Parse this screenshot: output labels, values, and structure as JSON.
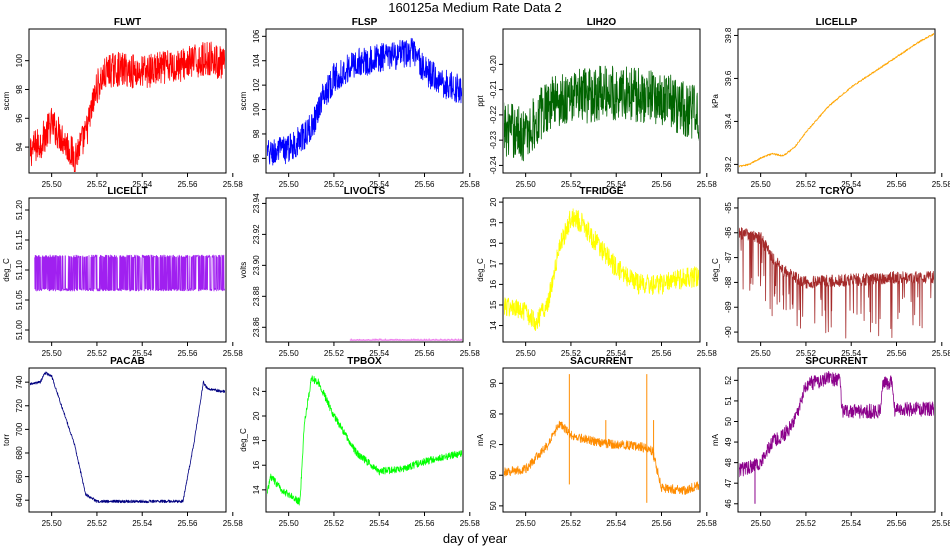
{
  "figure": {
    "title": "160125a   Medium Rate Data 2",
    "xlabel": "day of year"
  },
  "chart_data": [
    {
      "type": "line",
      "title": "FLWT",
      "ylabel": "sccm",
      "color": "#ff0000",
      "xlim": [
        25.49,
        25.577
      ],
      "ylim": [
        92.2,
        102.2
      ],
      "yticks": [
        94,
        96,
        98,
        100
      ],
      "xticks": [
        25.5,
        25.52,
        25.54,
        25.56,
        25.58
      ],
      "profile": [
        [
          25.49,
          93.7
        ],
        [
          25.495,
          94.3
        ],
        [
          25.5,
          95.6
        ],
        [
          25.505,
          94.6
        ],
        [
          25.51,
          93.3
        ],
        [
          25.515,
          94.8
        ],
        [
          25.52,
          98.2
        ],
        [
          25.525,
          99.3
        ],
        [
          25.53,
          99.4
        ],
        [
          25.54,
          99.2
        ],
        [
          25.55,
          99.5
        ],
        [
          25.56,
          99.8
        ],
        [
          25.57,
          100.2
        ],
        [
          25.577,
          99.6
        ]
      ],
      "noise": 1.2,
      "noise_style": "symmetric"
    },
    {
      "type": "line",
      "title": "FLSP",
      "ylabel": "sccm",
      "color": "#0000ff",
      "xlim": [
        25.49,
        25.577
      ],
      "ylim": [
        94.8,
        106.6
      ],
      "yticks": [
        96,
        98,
        100,
        102,
        104,
        106
      ],
      "xticks": [
        25.5,
        25.52,
        25.54,
        25.56,
        25.58
      ],
      "profile": [
        [
          25.49,
          96.3
        ],
        [
          25.5,
          96.8
        ],
        [
          25.505,
          97.5
        ],
        [
          25.51,
          98.5
        ],
        [
          25.515,
          101.0
        ],
        [
          25.52,
          102.6
        ],
        [
          25.53,
          103.8
        ],
        [
          25.54,
          104.2
        ],
        [
          25.55,
          104.5
        ],
        [
          25.555,
          104.7
        ],
        [
          25.56,
          103.2
        ],
        [
          25.57,
          102.0
        ],
        [
          25.577,
          101.6
        ]
      ],
      "noise": 1.2,
      "noise_style": "symmetric"
    },
    {
      "type": "line",
      "title": "LIH2O",
      "ylabel": "ppt",
      "color": "#006400",
      "xlim": [
        25.49,
        25.577
      ],
      "ylim": [
        -0.243,
        -0.186
      ],
      "yticks": [
        -0.24,
        -0.23,
        -0.22,
        -0.21,
        -0.2
      ],
      "xticks": [
        25.5,
        25.52,
        25.54,
        25.56,
        25.58
      ],
      "profile": [
        [
          25.49,
          -0.225
        ],
        [
          25.5,
          -0.228
        ],
        [
          25.505,
          -0.222
        ],
        [
          25.51,
          -0.215
        ],
        [
          25.52,
          -0.213
        ],
        [
          25.53,
          -0.212
        ],
        [
          25.54,
          -0.211
        ],
        [
          25.55,
          -0.212
        ],
        [
          25.56,
          -0.213
        ],
        [
          25.57,
          -0.218
        ],
        [
          25.577,
          -0.22
        ]
      ],
      "noise": 0.011,
      "noise_style": "symmetric"
    },
    {
      "type": "line",
      "title": "LICELLP",
      "ylabel": "kPa",
      "color": "#ffa500",
      "xlim": [
        25.49,
        25.577
      ],
      "ylim": [
        39.16,
        39.83
      ],
      "yticks": [
        39.2,
        39.4,
        39.6,
        39.8
      ],
      "xticks": [
        25.5,
        25.52,
        25.54,
        25.56,
        25.58
      ],
      "profile": [
        [
          25.49,
          39.19
        ],
        [
          25.495,
          39.2
        ],
        [
          25.5,
          39.23
        ],
        [
          25.505,
          39.25
        ],
        [
          25.51,
          39.24
        ],
        [
          25.515,
          39.28
        ],
        [
          25.52,
          39.35
        ],
        [
          25.53,
          39.47
        ],
        [
          25.54,
          39.56
        ],
        [
          25.55,
          39.63
        ],
        [
          25.56,
          39.7
        ],
        [
          25.57,
          39.77
        ],
        [
          25.577,
          39.81
        ]
      ],
      "noise": 0.004,
      "noise_style": "symmetric"
    },
    {
      "type": "line",
      "title": "LICELLT",
      "ylabel": "deg_C",
      "color": "#a020f0",
      "xlim": [
        25.49,
        25.577
      ],
      "ylim": [
        50.98,
        51.22
      ],
      "yticks": [
        51.0,
        51.05,
        51.1,
        51.15,
        51.2
      ],
      "xticks": [
        25.5,
        25.52,
        25.54,
        25.56,
        25.58
      ],
      "profile": [
        [
          25.4925,
          51.095
        ],
        [
          25.5765,
          51.095
        ]
      ],
      "noise": 0.03,
      "noise_style": "band"
    },
    {
      "type": "line",
      "title": "LIVOLTS",
      "ylabel": "volts",
      "color": "#ee82ee",
      "xlim": [
        25.49,
        25.577
      ],
      "ylim": [
        23.8505,
        23.9435
      ],
      "yticks": [
        23.86,
        23.88,
        23.9,
        23.92,
        23.94
      ],
      "xticks": [
        25.5,
        25.52,
        25.54,
        25.56,
        25.58
      ],
      "profile": [
        [
          25.527,
          23.8515
        ],
        [
          25.5765,
          23.8515
        ]
      ],
      "noise": 0.0006,
      "noise_style": "sparse"
    },
    {
      "type": "line",
      "title": "TFRIDGE",
      "ylabel": "deg_C",
      "color": "#ffff00",
      "xlim": [
        25.49,
        25.577
      ],
      "ylim": [
        13.2,
        20.2
      ],
      "yticks": [
        14,
        15,
        16,
        17,
        18,
        19,
        20
      ],
      "xticks": [
        25.5,
        25.52,
        25.54,
        25.56,
        25.58
      ],
      "profile": [
        [
          25.49,
          15.0
        ],
        [
          25.5,
          14.6
        ],
        [
          25.505,
          14.2
        ],
        [
          25.51,
          15.2
        ],
        [
          25.515,
          17.8
        ],
        [
          25.52,
          19.3
        ],
        [
          25.525,
          19.0
        ],
        [
          25.53,
          18.2
        ],
        [
          25.54,
          16.8
        ],
        [
          25.55,
          16.0
        ],
        [
          25.56,
          16.0
        ],
        [
          25.57,
          16.3
        ],
        [
          25.577,
          16.4
        ]
      ],
      "noise": 0.5,
      "noise_style": "symmetric"
    },
    {
      "type": "line",
      "title": "TCRYO",
      "ylabel": "deg_C",
      "color": "#a52a2a",
      "xlim": [
        25.49,
        25.577
      ],
      "ylim": [
        -90.4,
        -84.6
      ],
      "yticks": [
        -90,
        -89,
        -88,
        -87,
        -86,
        -85
      ],
      "xticks": [
        25.5,
        25.52,
        25.54,
        25.56,
        25.58
      ],
      "profile": [
        [
          25.49,
          -86.0
        ],
        [
          25.5,
          -86.2
        ],
        [
          25.505,
          -87.0
        ],
        [
          25.51,
          -87.5
        ],
        [
          25.515,
          -87.8
        ],
        [
          25.52,
          -88.0
        ],
        [
          25.54,
          -87.9
        ],
        [
          25.56,
          -87.8
        ],
        [
          25.577,
          -87.8
        ]
      ],
      "noise": 0.25,
      "noise_style": "downspikes"
    },
    {
      "type": "line",
      "title": "PACAB",
      "ylabel": "torr",
      "color": "#000080",
      "xlim": [
        25.49,
        25.577
      ],
      "ylim": [
        630,
        752
      ],
      "yticks": [
        640,
        660,
        680,
        700,
        720,
        740
      ],
      "xticks": [
        25.5,
        25.52,
        25.54,
        25.56,
        25.58
      ],
      "profile": [
        [
          25.49,
          738
        ],
        [
          25.495,
          740
        ],
        [
          25.497,
          748
        ],
        [
          25.5,
          745
        ],
        [
          25.51,
          688
        ],
        [
          25.515,
          645
        ],
        [
          25.52,
          639
        ],
        [
          25.54,
          639
        ],
        [
          25.558,
          639
        ],
        [
          25.563,
          690
        ],
        [
          25.567,
          740
        ],
        [
          25.569,
          734
        ],
        [
          25.577,
          732
        ]
      ],
      "noise": 1.2,
      "noise_style": "symmetric"
    },
    {
      "type": "line",
      "title": "TPBOX",
      "ylabel": "deg_C",
      "color": "#00ff00",
      "xlim": [
        25.49,
        25.577
      ],
      "ylim": [
        12.2,
        23.9
      ],
      "yticks": [
        14,
        16,
        18,
        20,
        22
      ],
      "xticks": [
        25.5,
        25.52,
        25.54,
        25.56,
        25.58
      ],
      "profile": [
        [
          25.49,
          13.2
        ],
        [
          25.492,
          15.1
        ],
        [
          25.497,
          14.0
        ],
        [
          25.505,
          13.0
        ],
        [
          25.507,
          19.5
        ],
        [
          25.51,
          23.0
        ],
        [
          25.513,
          22.8
        ],
        [
          25.52,
          20.0
        ],
        [
          25.53,
          17.0
        ],
        [
          25.54,
          15.5
        ],
        [
          25.55,
          15.7
        ],
        [
          25.56,
          16.3
        ],
        [
          25.57,
          16.7
        ],
        [
          25.577,
          17.0
        ]
      ],
      "noise": 0.3,
      "noise_style": "symmetric"
    },
    {
      "type": "line",
      "title": "SACURRENT",
      "ylabel": "mA",
      "color": "#ff8c00",
      "xlim": [
        25.49,
        25.577
      ],
      "ylim": [
        48,
        95
      ],
      "yticks": [
        50,
        60,
        70,
        80,
        90
      ],
      "xticks": [
        25.5,
        25.52,
        25.54,
        25.56,
        25.58
      ],
      "profile": [
        [
          25.49,
          61
        ],
        [
          25.5,
          62
        ],
        [
          25.51,
          70
        ],
        [
          25.515,
          77
        ],
        [
          25.52,
          73
        ],
        [
          25.53,
          71
        ],
        [
          25.54,
          70
        ],
        [
          25.55,
          69.5
        ],
        [
          25.556,
          68
        ],
        [
          25.56,
          56
        ],
        [
          25.57,
          55
        ],
        [
          25.577,
          57
        ]
      ],
      "noise": 1.5,
      "noise_style": "symmetric",
      "spikes": [
        [
          25.5193,
          93
        ],
        [
          25.5193,
          57
        ],
        [
          25.5354,
          78
        ],
        [
          25.5535,
          93
        ],
        [
          25.5535,
          51
        ],
        [
          25.5565,
          78
        ]
      ]
    },
    {
      "type": "line",
      "title": "SPCURRENT",
      "ylabel": "mA",
      "color": "#8b008b",
      "xlim": [
        25.49,
        25.577
      ],
      "ylim": [
        45.6,
        52.6
      ],
      "yticks": [
        46,
        47,
        48,
        49,
        50,
        51,
        52
      ],
      "xticks": [
        25.5,
        25.52,
        25.54,
        25.56,
        25.58
      ],
      "profile": [
        [
          25.49,
          47.6
        ],
        [
          25.5,
          48.0
        ],
        [
          25.505,
          49.0
        ],
        [
          25.51,
          49.3
        ],
        [
          25.515,
          50.0
        ],
        [
          25.52,
          51.8
        ],
        [
          25.53,
          52.1
        ],
        [
          25.535,
          52.0
        ],
        [
          25.536,
          50.5
        ],
        [
          25.55,
          50.5
        ],
        [
          25.553,
          50.5
        ],
        [
          25.554,
          51.9
        ],
        [
          25.558,
          51.9
        ],
        [
          25.559,
          50.6
        ],
        [
          25.577,
          50.6
        ]
      ],
      "noise": 0.35,
      "noise_style": "symmetric",
      "spikes": [
        [
          25.4975,
          46.0
        ]
      ]
    }
  ]
}
